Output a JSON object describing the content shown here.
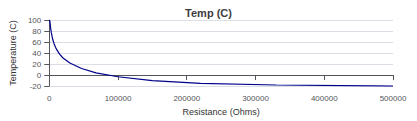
{
  "chart_data": {
    "type": "line",
    "title": "Temp (C)",
    "xlabel": "Resistance (Ohms)",
    "ylabel": "Temperature (C)",
    "x": [
      500,
      1000,
      2000,
      3000,
      5000,
      7000,
      10000,
      15000,
      20000,
      30000,
      47000,
      68000,
      100000,
      150000,
      220000,
      330000,
      470000,
      500000
    ],
    "values": [
      100,
      97,
      85,
      77,
      65,
      57,
      48,
      38,
      31,
      22,
      12,
      4,
      -3,
      -10,
      -15,
      -18,
      -19.5,
      -20
    ],
    "color": "#00008B",
    "xlim": [
      0,
      500000
    ],
    "xticks": [
      0,
      100000,
      200000,
      300000,
      400000,
      500000
    ],
    "ylim": [
      -20,
      100
    ],
    "yticks": [
      -20,
      0,
      20,
      40,
      60,
      80,
      100
    ],
    "grid": "y"
  }
}
